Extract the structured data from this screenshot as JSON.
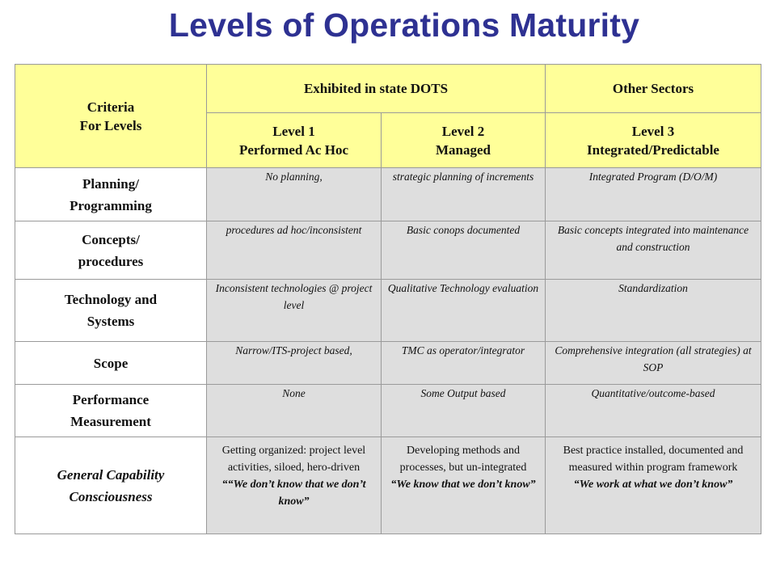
{
  "title": "Levels of Operations Maturity",
  "header": {
    "criteria": "Criteria",
    "for_levels": "For Levels",
    "group_dots": "Exhibited in state DOTS",
    "group_other": "Other Sectors",
    "level1_name": "Level 1",
    "level1_desc": "Performed Ac Hoc",
    "level2_name": "Level 2",
    "level2_desc": "Managed",
    "level3_name": "Level 3",
    "level3_desc": "Integrated/Predictable"
  },
  "rows": [
    {
      "label_line1": "Planning/",
      "label_line2": "Programming",
      "l1": "No planning,",
      "l2": "strategic planning of increments",
      "l3": "Integrated Program (D/O/M)"
    },
    {
      "label_line1": "Concepts/",
      "label_line2": "procedures",
      "l1": "procedures ad hoc/inconsistent",
      "l2": "Basic conops documented",
      "l3": "Basic concepts integrated into maintenance and construction"
    },
    {
      "label_line1": "Technology and",
      "label_line2": "Systems",
      "l1": "Inconsistent technologies @ project level",
      "l2": "Qualitative Technology evaluation",
      "l3": "Standardization"
    },
    {
      "label_line1": "Scope",
      "label_line2": "",
      "l1": "Narrow/ITS-project based,",
      "l2": "TMC as operator/integrator",
      "l3": "Comprehensive integration (all strategies) at SOP"
    },
    {
      "label_line1": "Performance",
      "label_line2": "Measurement",
      "l1": "None",
      "l2": "Some Output based",
      "l3": "Quantitative/outcome-based"
    },
    {
      "label_line1": "General Capability",
      "label_line2": "Consciousness",
      "l1": "Getting organized: project level activities, siloed, hero-driven",
      "l1_quote": "““We don’t know that we don’t know”",
      "l2": "Developing methods and processes, but un-integrated",
      "l2_quote": "“We know that we don’t know”",
      "l3": "Best practice installed, documented and measured within program framework",
      "l3_quote": "“We work at what we don’t know”"
    }
  ]
}
